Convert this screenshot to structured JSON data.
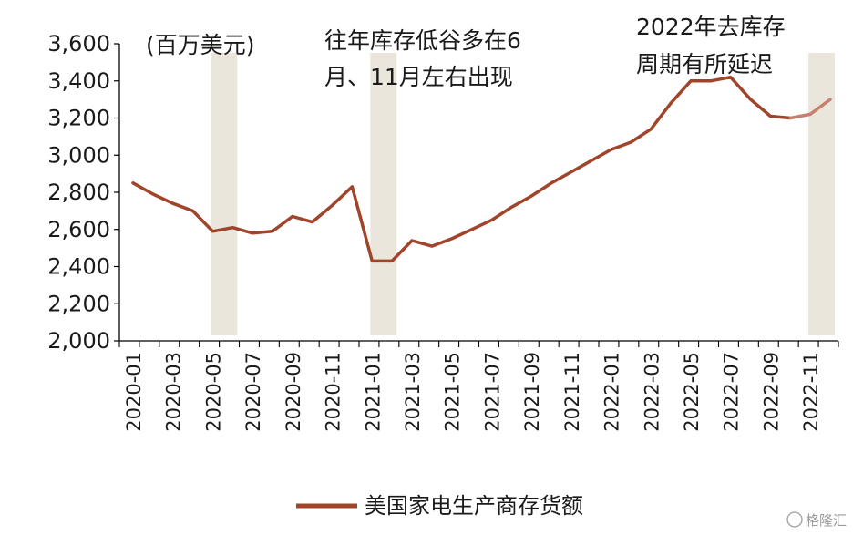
{
  "chart_data": {
    "type": "line",
    "unit_label": "(百万美元)",
    "categories": [
      "2020-01",
      "2020-02",
      "2020-03",
      "2020-04",
      "2020-05",
      "2020-06",
      "2020-07",
      "2020-08",
      "2020-09",
      "2020-10",
      "2020-11",
      "2020-12",
      "2021-01",
      "2021-02",
      "2021-03",
      "2021-04",
      "2021-05",
      "2021-06",
      "2021-07",
      "2021-08",
      "2021-09",
      "2021-10",
      "2021-11",
      "2021-12",
      "2022-01",
      "2022-02",
      "2022-03",
      "2022-04",
      "2022-05",
      "2022-06",
      "2022-07",
      "2022-08",
      "2022-09",
      "2022-10",
      "2022-11",
      "2022-12"
    ],
    "x_tick_labels": [
      "2020-01",
      "2020-03",
      "2020-05",
      "2020-07",
      "2020-09",
      "2020-11",
      "2021-01",
      "2021-03",
      "2021-05",
      "2021-07",
      "2021-09",
      "2021-11",
      "2022-01",
      "2022-03",
      "2022-05",
      "2022-07",
      "2022-09",
      "2022-11"
    ],
    "series": [
      {
        "name": "美国家电生产商存货额",
        "color": "#a0452b",
        "values": [
          2850,
          2790,
          2740,
          2700,
          2590,
          2610,
          2580,
          2590,
          2670,
          2640,
          2730,
          2830,
          2430,
          2430,
          2540,
          2510,
          2550,
          2600,
          2650,
          2720,
          2780,
          2850,
          2910,
          2970,
          3030,
          3070,
          3140,
          3280,
          3400,
          3400,
          3420,
          3300,
          3210,
          3200,
          3220,
          3300
        ]
      }
    ],
    "ylim": [
      2000,
      3600
    ],
    "y_ticks": [
      "2,000",
      "2,200",
      "2,400",
      "2,600",
      "2,800",
      "3,000",
      "3,200",
      "3,400",
      "3,600"
    ],
    "shaded_ranges": [
      [
        4,
        5
      ],
      [
        12,
        13
      ],
      [
        34,
        35
      ]
    ],
    "shade_color": "#ebe6dc",
    "highlight_segment_from_index": 33,
    "highlight_color": "#c7806b",
    "annotations": [
      {
        "id": "a1",
        "lines": [
          "往年库存低谷多在6",
          "月、11月左右出现"
        ]
      },
      {
        "id": "a2",
        "lines": [
          "2022年去库存",
          "周期有所延迟"
        ]
      }
    ],
    "legend_position": "bottom-center",
    "grid": false
  },
  "watermark": "格隆汇"
}
